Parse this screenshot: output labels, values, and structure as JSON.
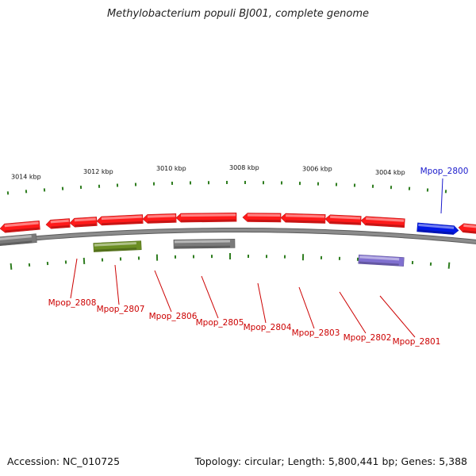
{
  "title": "Methylobacterium populi BJ001, complete genome",
  "footer": {
    "accession": "Accession: NC_010725",
    "topology": "Topology: circular; Length: 5,800,441 bp; Genes: 5,388"
  },
  "colors": {
    "backbone": "#8c8c8c",
    "tick": "#2e7d1f",
    "cds": "#ff1a1a",
    "pseudo": "#7a7a7a",
    "misc": "#6b8e23",
    "trna": "#8070d0",
    "highlight": "#0018e6",
    "label_red": "#cc0000",
    "label_blue": "#1a1acc"
  },
  "scale": {
    "unit": "kbp",
    "labels": [
      "3014 kbp",
      "3012 kbp",
      "3010 kbp",
      "3008 kbp",
      "3006 kbp",
      "3004 kbp"
    ]
  },
  "genes": [
    {
      "label": "Mpop_2800",
      "color_key": "highlight"
    },
    {
      "label": "Mpop_2801",
      "color_key": "cds"
    },
    {
      "label": "Mpop_2802",
      "color_key": "cds"
    },
    {
      "label": "Mpop_2803",
      "color_key": "cds"
    },
    {
      "label": "Mpop_2804",
      "color_key": "cds"
    },
    {
      "label": "Mpop_2805",
      "color_key": "cds"
    },
    {
      "label": "Mpop_2806",
      "color_key": "cds"
    },
    {
      "label": "Mpop_2807",
      "color_key": "cds"
    },
    {
      "label": "Mpop_2808",
      "color_key": "cds"
    }
  ]
}
